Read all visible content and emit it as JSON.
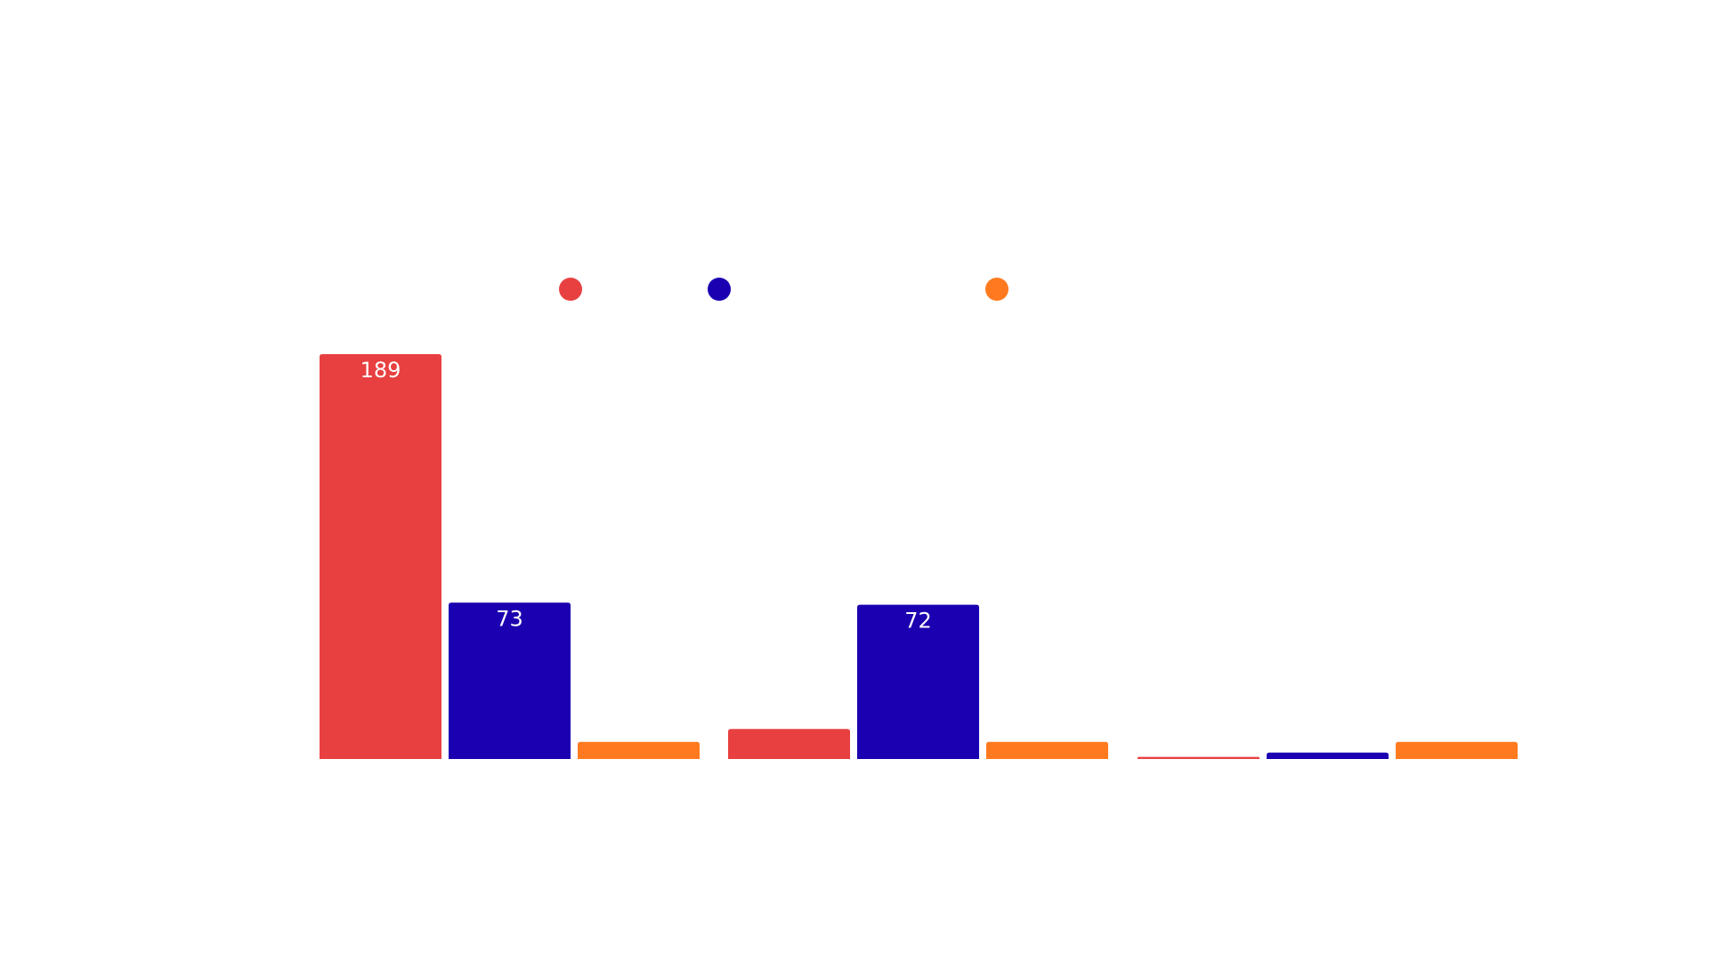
{
  "chart_data": {
    "type": "bar",
    "title": "",
    "xlabel": "",
    "ylabel": "",
    "categories": [
      "",
      "",
      ""
    ],
    "ylim": [
      0,
      189
    ],
    "grid": false,
    "legend_placement": "top-center",
    "series": [
      {
        "name": "",
        "color": "#e84040",
        "values": [
          189,
          14,
          1
        ]
      },
      {
        "name": "",
        "color": "#1a00b0",
        "values": [
          73,
          72,
          3
        ]
      },
      {
        "name": "",
        "color": "#ff7a1f",
        "values": [
          8,
          8,
          8
        ]
      }
    ],
    "data_labels": [
      {
        "series": 0,
        "category": 0,
        "text": "189"
      },
      {
        "series": 1,
        "category": 0,
        "text": "73"
      },
      {
        "series": 1,
        "category": 1,
        "text": "72"
      }
    ]
  }
}
